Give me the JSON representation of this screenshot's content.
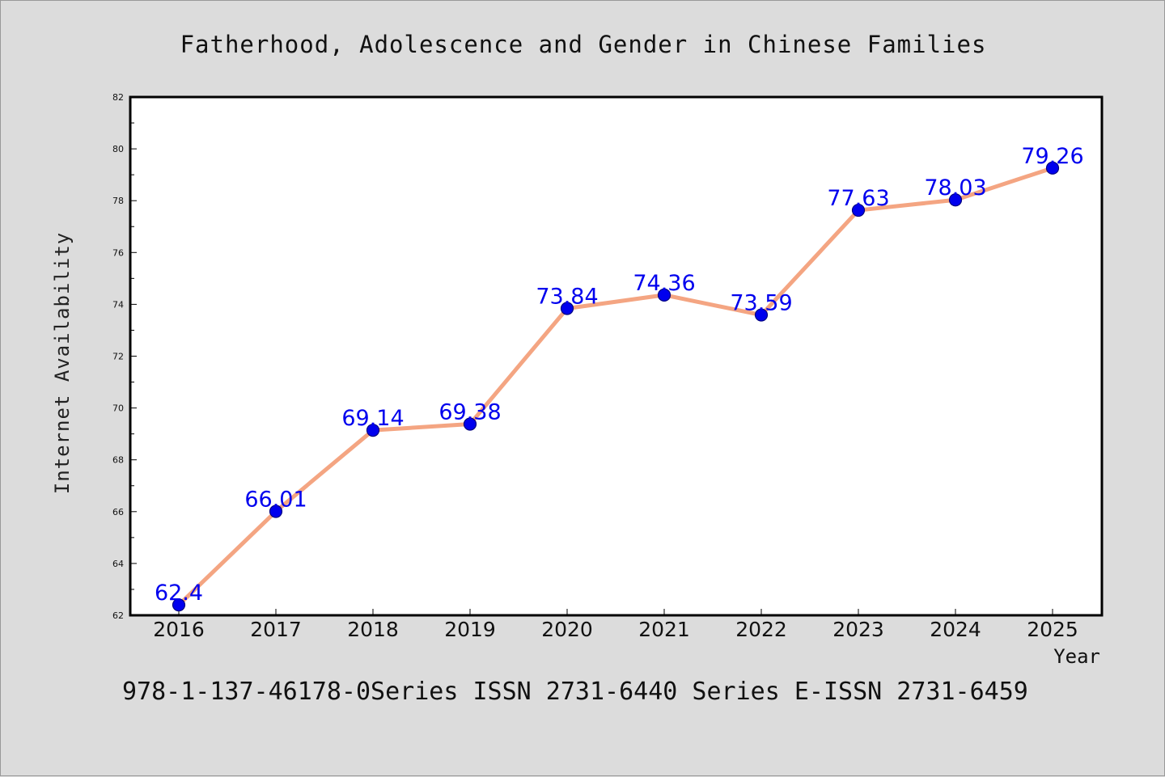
{
  "title": "Fatherhood, Adolescence and Gender in Chinese Families",
  "footer": "978-1-137-46178-0Series ISSN 2731-6440 Series E-ISSN 2731-6459",
  "colors": {
    "background": "#dcdcdc",
    "plot_background": "#ffffff",
    "line": "#f4a582",
    "marker_fill": "#0000ee",
    "marker_edge": "#000080",
    "data_label": "#0000ee"
  },
  "chart_data": {
    "type": "line",
    "title": "Fatherhood, Adolescence and Gender in Chinese Families",
    "xlabel": "Year",
    "ylabel": "Internet Availability",
    "ylim": [
      62,
      82
    ],
    "yticks": [
      62,
      64,
      66,
      68,
      70,
      72,
      74,
      76,
      78,
      80,
      82
    ],
    "categories": [
      "2016",
      "2017",
      "2018",
      "2019",
      "2020",
      "2021",
      "2022",
      "2023",
      "2024",
      "2025"
    ],
    "series": [
      {
        "values": [
          62.4,
          66.01,
          69.14,
          69.38,
          73.84,
          74.36,
          73.59,
          77.63,
          78.03,
          79.26
        ],
        "labels": [
          "62.4",
          "66.01",
          "69.14",
          "69.38",
          "73.84",
          "74.36",
          "73.59",
          "77.63",
          "78.03",
          "79.26"
        ]
      }
    ],
    "grid": false,
    "legend": "none",
    "marker": "circle",
    "data_labels": true
  }
}
